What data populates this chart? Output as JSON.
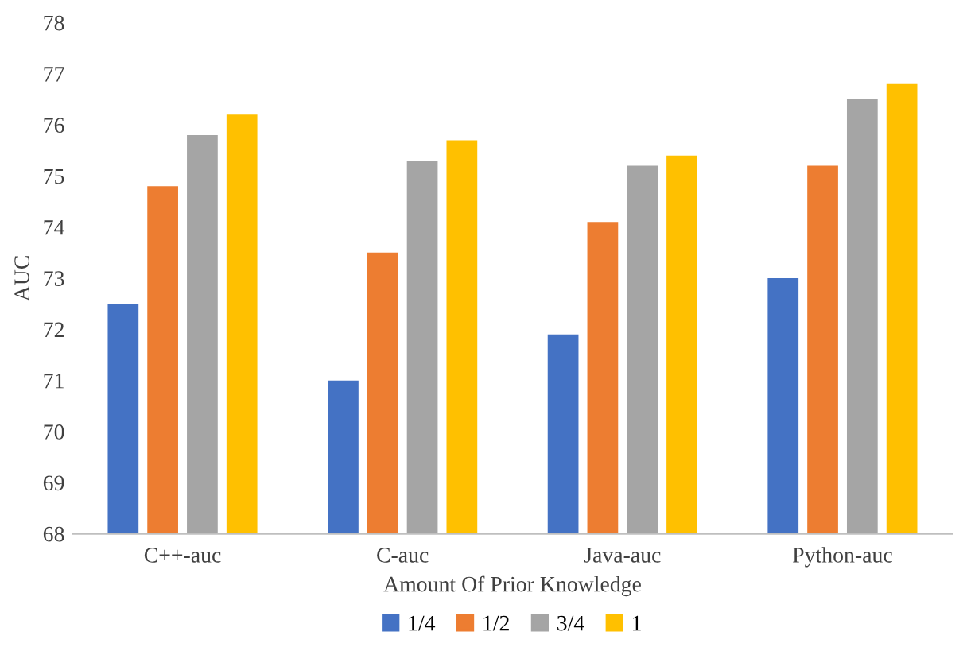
{
  "chart_data": {
    "type": "bar",
    "xlabel": "Amount Of Prior Knowledge",
    "ylabel": "AUC",
    "categories": [
      "C++-auc",
      "C-auc",
      "Java-auc",
      "Python-auc"
    ],
    "series": [
      {
        "name": "1/4",
        "color": "#4472c4",
        "values": [
          72.5,
          71.0,
          71.9,
          73.0
        ]
      },
      {
        "name": "1/2",
        "color": "#ed7d31",
        "values": [
          74.8,
          73.5,
          74.1,
          75.2
        ]
      },
      {
        "name": "3/4",
        "color": "#a5a5a5",
        "values": [
          75.8,
          75.3,
          75.2,
          76.5
        ]
      },
      {
        "name": "1",
        "color": "#ffc000",
        "values": [
          76.2,
          75.7,
          75.4,
          76.8
        ]
      }
    ],
    "ylim": [
      68,
      78
    ],
    "yticks": [
      68,
      69,
      70,
      71,
      72,
      73,
      74,
      75,
      76,
      77,
      78
    ],
    "grid": false,
    "legend": "bottom"
  }
}
